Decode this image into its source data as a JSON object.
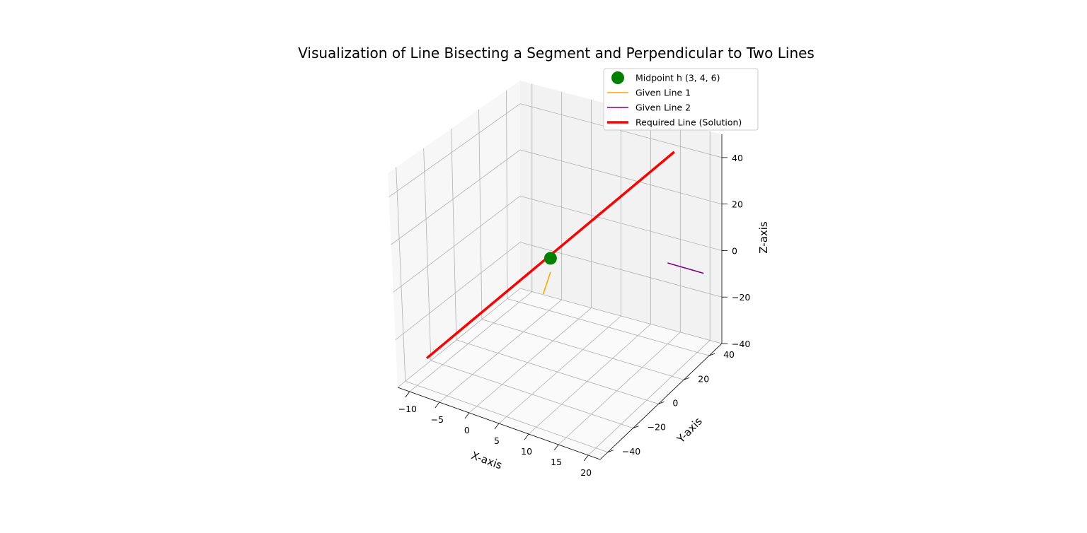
{
  "chart_data": {
    "type": "line",
    "projection": "3d",
    "title": "Visualization of Line Bisecting a Segment and Perpendicular to Two Lines",
    "xlabel": "X-axis",
    "ylabel": "Y-axis",
    "zlabel": "Z-axis",
    "xlim": [
      -12,
      22
    ],
    "ylim": [
      -46,
      50
    ],
    "zlim": [
      -40,
      50
    ],
    "x_ticks": [
      -10,
      -5,
      0,
      5,
      10,
      15,
      20
    ],
    "x_tick_labels": [
      "−10",
      "−5",
      "0",
      "5",
      "10",
      "15",
      "20"
    ],
    "y_ticks": [
      -40,
      -20,
      0,
      20,
      40
    ],
    "y_tick_labels": [
      "−40",
      "−20",
      "0",
      "20",
      "40"
    ],
    "z_ticks": [
      -40,
      -20,
      0,
      20,
      40
    ],
    "z_tick_labels": [
      "−40",
      "−20",
      "0",
      "20",
      "40"
    ],
    "grid": true,
    "legend_position": "top-right",
    "series": [
      {
        "name": "Midpoint h (3, 4, 6)",
        "kind": "point",
        "color": "#008000",
        "points": [
          [
            3,
            4,
            6
          ]
        ]
      },
      {
        "name": "Given Line 1",
        "kind": "line",
        "color": "#ffa500",
        "points": [
          [
            2,
            3,
            -10
          ],
          [
            3,
            4,
            0
          ]
        ]
      },
      {
        "name": "Given Line 2",
        "kind": "line",
        "color": "#800080",
        "points": [
          [
            17,
            30,
            2
          ],
          [
            21,
            40,
            -5
          ]
        ]
      },
      {
        "name": "Required Line (Solution)",
        "kind": "line",
        "color": "#ff0000",
        "points": [
          [
            -10,
            -32,
            -32
          ],
          [
            16,
            40,
            44
          ]
        ]
      }
    ]
  }
}
